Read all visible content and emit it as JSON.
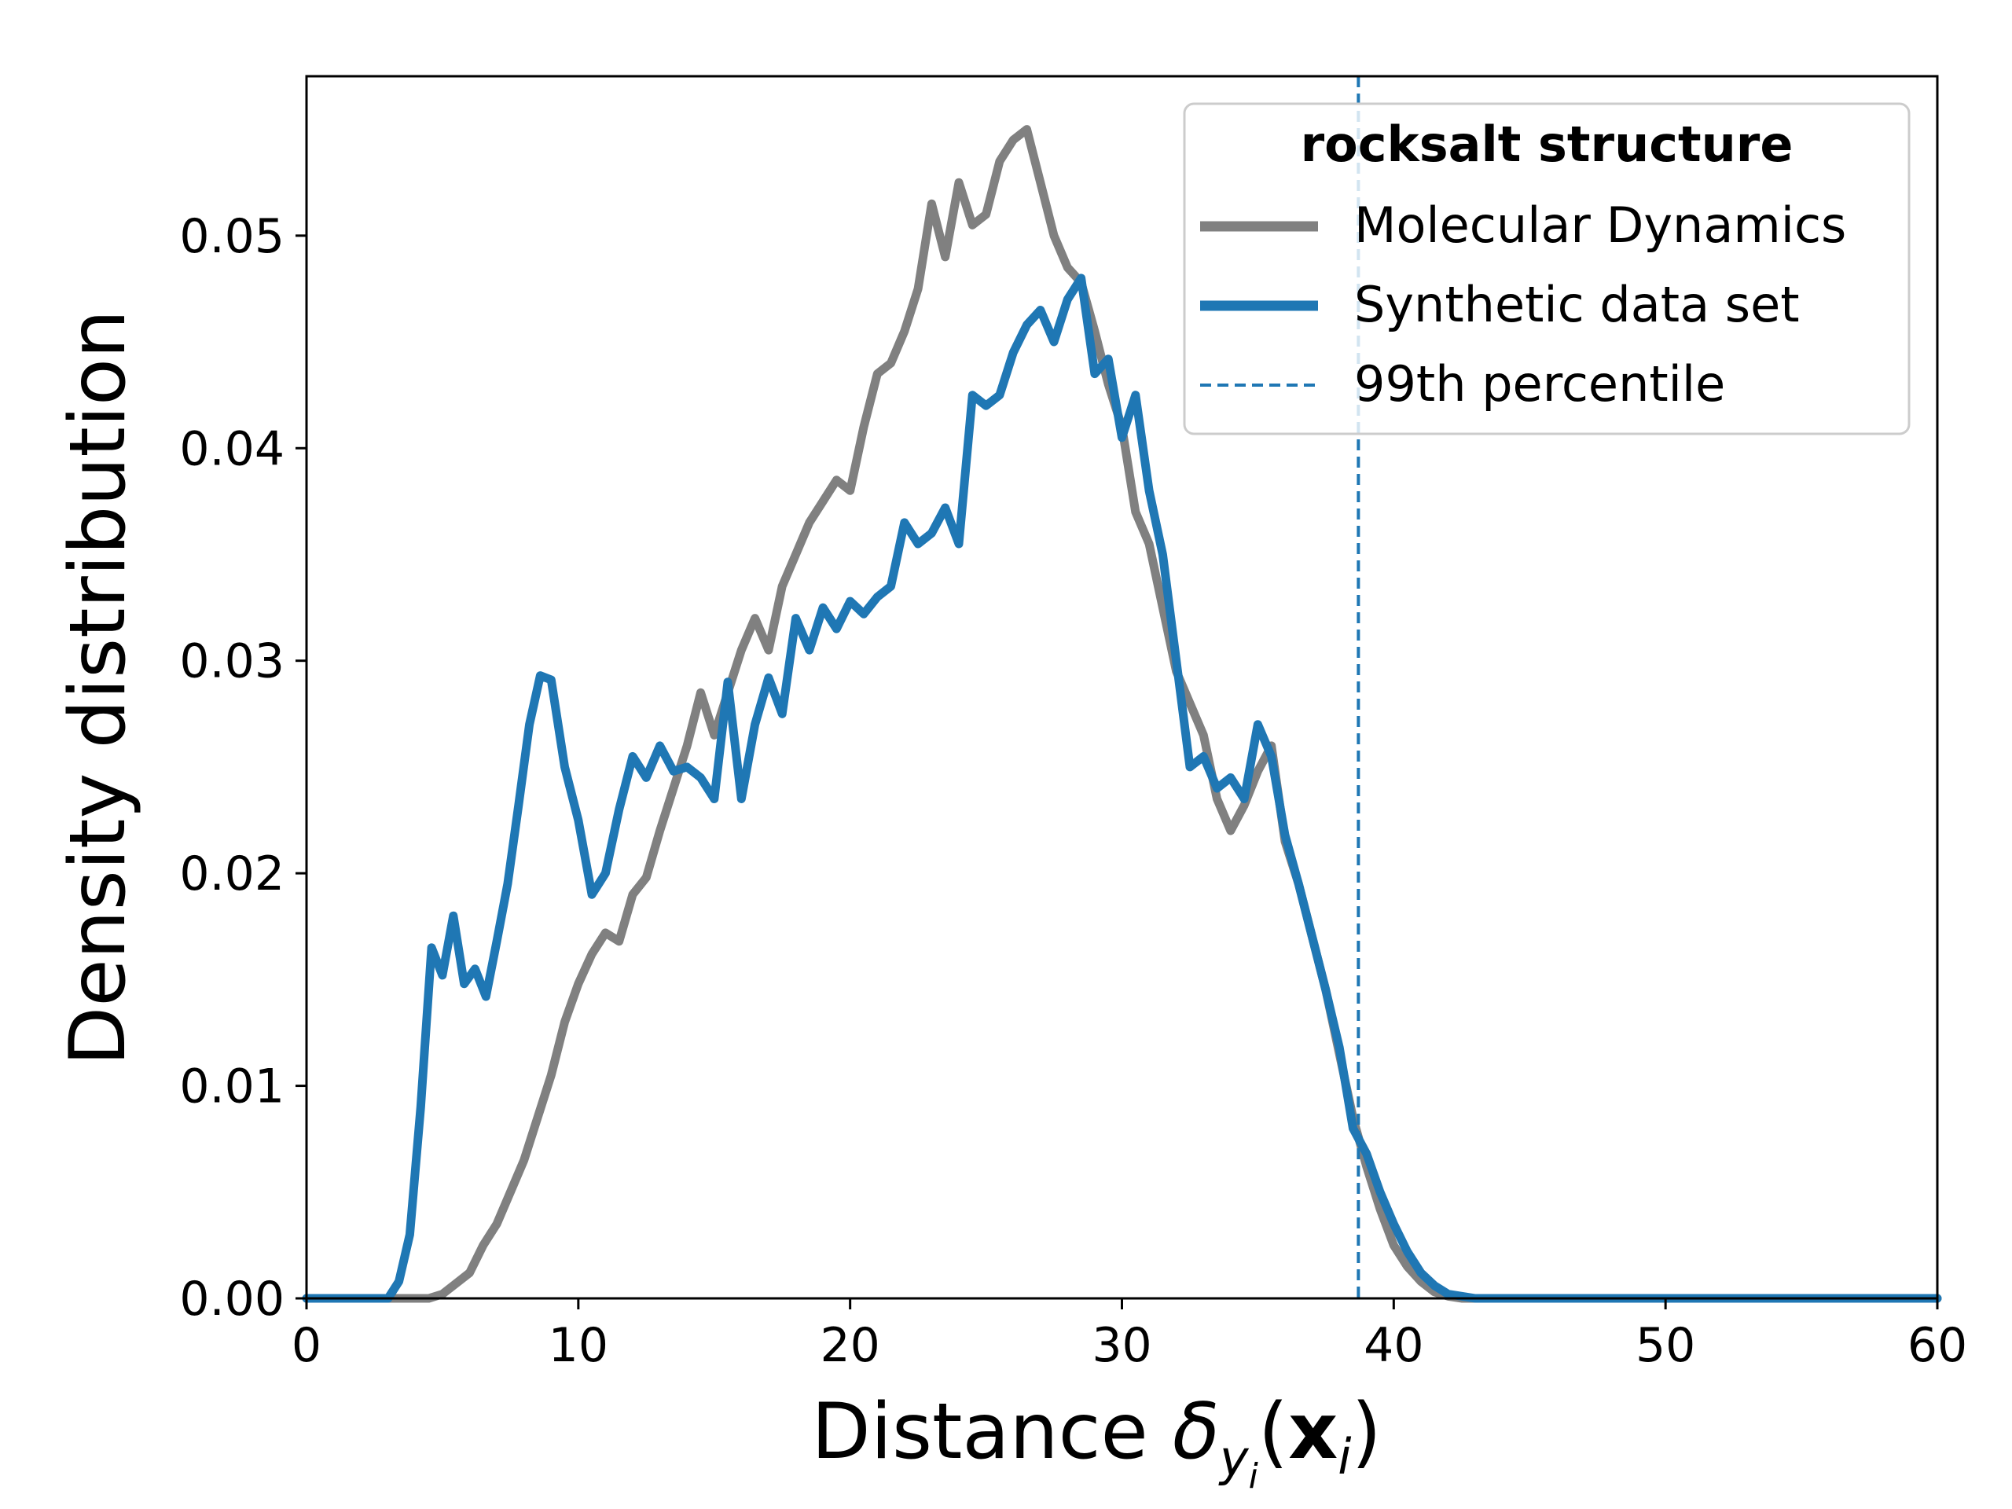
{
  "chart_data": {
    "type": "line",
    "title": "",
    "xlabel_main": "Distance ",
    "xlabel_delta": "δ",
    "xlabel_sub_y": "y",
    "xlabel_sub_i": "i",
    "xlabel_paren_open": "(",
    "xlabel_bold_x": "x",
    "xlabel_sub_i2": "i",
    "xlabel_paren_close": ")",
    "ylabel": "Density distribution",
    "xlim": [
      0,
      60
    ],
    "ylim": [
      0,
      0.0575
    ],
    "xticks": [
      0,
      10,
      20,
      30,
      40,
      50,
      60
    ],
    "xtick_labels": [
      "0",
      "10",
      "20",
      "30",
      "40",
      "50",
      "60"
    ],
    "yticks": [
      0,
      0.01,
      0.02,
      0.03,
      0.04,
      0.05
    ],
    "ytick_labels": [
      "0.00",
      "0.01",
      "0.02",
      "0.03",
      "0.04",
      "0.05"
    ],
    "grid": false,
    "legend_position": "top-right",
    "legend_title": "rocksalt structure",
    "percentile_line": {
      "label": "99th percentile",
      "x": 38.7,
      "color": "#1f77b4",
      "style": "dashed"
    },
    "series": [
      {
        "name": "Molecular Dynamics",
        "color": "#808080",
        "x": [
          0,
          3,
          4.5,
          5,
          5.5,
          6,
          6.5,
          7,
          7.5,
          8,
          8.5,
          9,
          9.5,
          10,
          10.5,
          11,
          11.5,
          12,
          12.5,
          13,
          13.5,
          14,
          14.5,
          15,
          15.5,
          16,
          16.5,
          17,
          17.5,
          18,
          18.5,
          19,
          19.5,
          20,
          20.5,
          21,
          21.5,
          22,
          22.5,
          23,
          23.5,
          24,
          24.5,
          25,
          25.5,
          26,
          26.5,
          27,
          27.5,
          28,
          28.5,
          29,
          29.5,
          30,
          30.5,
          31,
          31.5,
          32,
          32.5,
          33,
          33.5,
          34,
          34.5,
          35,
          35.5,
          36,
          36.5,
          37,
          37.5,
          38,
          38.5,
          39,
          39.5,
          40,
          40.5,
          41,
          41.5,
          42,
          42.5,
          43,
          44,
          50,
          60
        ],
        "y": [
          0,
          0,
          0,
          0.0002,
          0.0007,
          0.0012,
          0.0025,
          0.0035,
          0.005,
          0.0065,
          0.0085,
          0.0105,
          0.013,
          0.0148,
          0.0162,
          0.0172,
          0.0168,
          0.019,
          0.0198,
          0.022,
          0.024,
          0.026,
          0.0285,
          0.0265,
          0.0285,
          0.0305,
          0.032,
          0.0305,
          0.0335,
          0.035,
          0.0365,
          0.0375,
          0.0385,
          0.038,
          0.041,
          0.0435,
          0.044,
          0.0455,
          0.0475,
          0.0515,
          0.049,
          0.0525,
          0.0505,
          0.051,
          0.0535,
          0.0545,
          0.055,
          0.0525,
          0.05,
          0.0485,
          0.0478,
          0.0455,
          0.043,
          0.041,
          0.037,
          0.0355,
          0.0325,
          0.0295,
          0.028,
          0.0265,
          0.0235,
          0.022,
          0.0232,
          0.0248,
          0.026,
          0.0215,
          0.0195,
          0.017,
          0.0145,
          0.0115,
          0.0085,
          0.0062,
          0.0042,
          0.0025,
          0.0015,
          0.0008,
          0.0003,
          0.0001,
          0,
          0,
          0,
          0,
          0
        ]
      },
      {
        "name": "Synthetic data set",
        "color": "#1f77b4",
        "x": [
          0,
          3,
          3.4,
          3.8,
          4.2,
          4.6,
          5,
          5.4,
          5.8,
          6.2,
          6.6,
          7,
          7.4,
          7.8,
          8.2,
          8.6,
          9,
          9.5,
          10,
          10.5,
          11,
          11.5,
          12,
          12.5,
          13,
          13.5,
          14,
          14.5,
          15,
          15.5,
          16,
          16.5,
          17,
          17.5,
          18,
          18.5,
          19,
          19.5,
          20,
          20.5,
          21,
          21.5,
          22,
          22.5,
          23,
          23.5,
          24,
          24.5,
          25,
          25.5,
          26,
          26.5,
          27,
          27.5,
          28,
          28.5,
          29,
          29.5,
          30,
          30.5,
          31,
          31.5,
          32,
          32.5,
          33,
          33.5,
          34,
          34.5,
          35,
          35.5,
          36,
          36.5,
          37,
          37.5,
          38,
          38.5,
          39,
          39.5,
          40,
          40.5,
          41,
          41.5,
          42,
          43,
          44,
          50,
          60
        ],
        "y": [
          0,
          0,
          0.0008,
          0.003,
          0.009,
          0.0165,
          0.0152,
          0.018,
          0.0148,
          0.0155,
          0.0142,
          0.0168,
          0.0195,
          0.0232,
          0.027,
          0.0293,
          0.0291,
          0.025,
          0.0225,
          0.019,
          0.02,
          0.023,
          0.0255,
          0.0245,
          0.026,
          0.0248,
          0.025,
          0.0245,
          0.0235,
          0.029,
          0.0235,
          0.027,
          0.0292,
          0.0275,
          0.032,
          0.0305,
          0.0325,
          0.0315,
          0.0328,
          0.0322,
          0.033,
          0.0335,
          0.0365,
          0.0355,
          0.036,
          0.0372,
          0.0355,
          0.0425,
          0.042,
          0.0425,
          0.0445,
          0.0458,
          0.0465,
          0.045,
          0.047,
          0.048,
          0.0435,
          0.0442,
          0.0405,
          0.0425,
          0.038,
          0.035,
          0.03,
          0.025,
          0.0255,
          0.024,
          0.0245,
          0.0235,
          0.027,
          0.0255,
          0.0218,
          0.0195,
          0.017,
          0.0145,
          0.0118,
          0.008,
          0.0068,
          0.005,
          0.0035,
          0.0022,
          0.0012,
          0.0006,
          0.0002,
          0,
          0,
          0,
          0
        ]
      }
    ]
  }
}
